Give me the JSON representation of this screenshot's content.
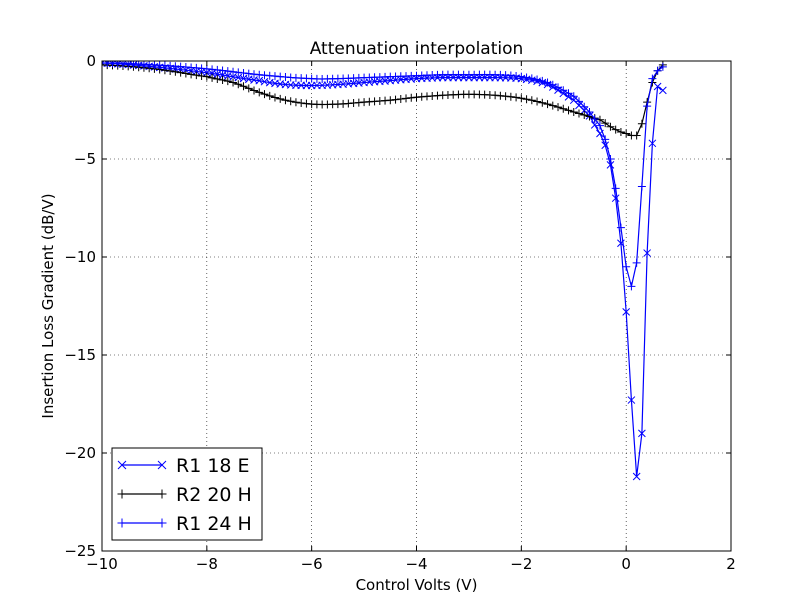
{
  "chart_data": {
    "type": "line",
    "title": "Attenuation interpolation",
    "xlabel": "Control Volts (V)",
    "ylabel": "Insertion Loss Gradient (dB/V)",
    "xlim": [
      -10,
      2
    ],
    "ylim": [
      -25,
      0
    ],
    "xticks": [
      -10,
      -8,
      -6,
      -4,
      -2,
      0,
      2
    ],
    "yticks": [
      0,
      -5,
      -10,
      -15,
      -20,
      -25
    ],
    "xtick_labels": [
      "−10",
      "−8",
      "−6",
      "−4",
      "−2",
      "0",
      "2"
    ],
    "ytick_labels": [
      "0",
      "−5",
      "−10",
      "−15",
      "−20",
      "−25"
    ],
    "grid": true,
    "legend_position": "bottom-left",
    "series": [
      {
        "name": "R1 18 E",
        "color": "#0000ff",
        "marker": "x",
        "x": [
          -10.0,
          -9.0,
          -8.0,
          -7.0,
          -6.5,
          -6.0,
          -5.5,
          -5.0,
          -4.5,
          -4.0,
          -3.5,
          -3.0,
          -2.5,
          -2.0,
          -1.5,
          -1.0,
          -0.7,
          -0.5,
          -0.4,
          -0.3,
          -0.2,
          -0.1,
          0.0,
          0.1,
          0.2,
          0.3,
          0.4,
          0.5,
          0.6,
          0.7
        ],
        "y": [
          -0.1,
          -0.3,
          -0.6,
          -1.0,
          -1.2,
          -1.25,
          -1.2,
          -1.1,
          -1.0,
          -0.9,
          -0.85,
          -0.85,
          -0.85,
          -0.9,
          -1.2,
          -2.0,
          -2.8,
          -3.7,
          -4.3,
          -5.3,
          -7.0,
          -9.3,
          -12.8,
          -17.3,
          -21.2,
          -19.0,
          -9.8,
          -4.2,
          -1.3,
          -1.5
        ]
      },
      {
        "name": "R2 20 H",
        "color": "#000000",
        "marker": "+",
        "x": [
          -10.0,
          -9.0,
          -8.0,
          -7.5,
          -7.0,
          -6.5,
          -6.0,
          -5.5,
          -5.0,
          -4.5,
          -4.0,
          -3.5,
          -3.0,
          -2.5,
          -2.0,
          -1.5,
          -1.0,
          -0.5,
          -0.2,
          0.0,
          0.2,
          0.3,
          0.4,
          0.5,
          0.6,
          0.7
        ],
        "y": [
          -0.2,
          -0.4,
          -0.8,
          -1.1,
          -1.6,
          -2.0,
          -2.2,
          -2.2,
          -2.1,
          -2.0,
          -1.85,
          -1.75,
          -1.7,
          -1.75,
          -1.9,
          -2.2,
          -2.6,
          -3.0,
          -3.5,
          -3.7,
          -3.8,
          -3.2,
          -2.1,
          -1.1,
          -0.5,
          -0.2
        ]
      },
      {
        "name": "R1 24 H",
        "color": "#0000ff",
        "marker": "+",
        "x": [
          -10.0,
          -9.0,
          -8.0,
          -7.0,
          -6.0,
          -5.5,
          -5.0,
          -4.5,
          -4.0,
          -3.5,
          -3.0,
          -2.5,
          -2.0,
          -1.5,
          -1.0,
          -0.7,
          -0.5,
          -0.4,
          -0.3,
          -0.2,
          -0.1,
          0.0,
          0.1,
          0.2,
          0.3,
          0.4,
          0.5,
          0.6,
          0.7
        ],
        "y": [
          -0.1,
          -0.2,
          -0.4,
          -0.7,
          -0.9,
          -0.9,
          -0.85,
          -0.8,
          -0.75,
          -0.7,
          -0.7,
          -0.7,
          -0.8,
          -1.1,
          -1.8,
          -2.6,
          -3.3,
          -4.0,
          -5.0,
          -6.5,
          -8.5,
          -10.5,
          -11.5,
          -10.3,
          -6.4,
          -2.3,
          -0.9,
          -0.5,
          -0.3
        ]
      }
    ]
  }
}
